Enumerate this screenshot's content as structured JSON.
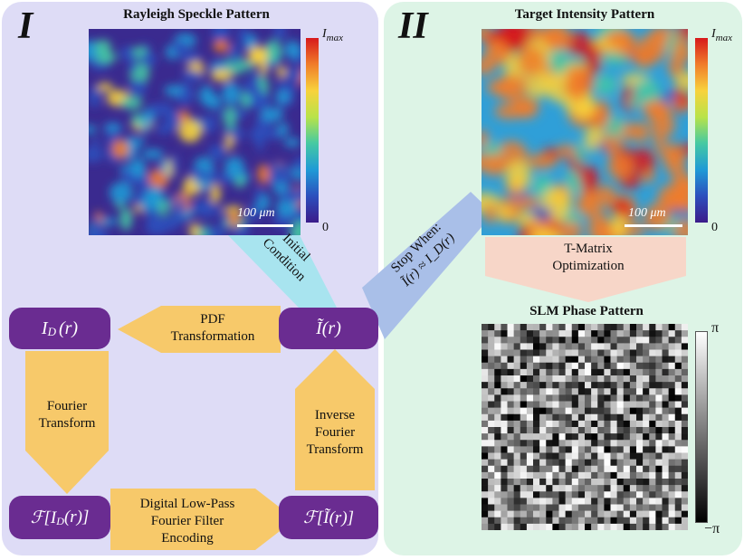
{
  "panels": {
    "left": {
      "numeral": "I",
      "title": "Rayleigh Speckle Pattern",
      "scale_label": "100 μm",
      "cbar_max": "I",
      "cbar_max_sub": "max",
      "cbar_min": "0"
    },
    "right": {
      "numeral": "II",
      "title": "Target Intensity Pattern",
      "scale_label": "100 μm",
      "cbar_max": "I",
      "cbar_max_sub": "max",
      "cbar_min": "0"
    },
    "slm": {
      "title": "SLM Phase Pattern",
      "cbar_max": "π",
      "cbar_min": "−π"
    }
  },
  "nodes": {
    "id": {
      "main": "I",
      "sub": "D",
      "tail": "(r)"
    },
    "itilde": {
      "main": "Ĩ(r)"
    },
    "fid": {
      "main": "ℱ[I",
      "sub": "D",
      "tail": "(r)]"
    },
    "fitilde": {
      "main": "ℱ[Ĩ(r)]"
    }
  },
  "labels": {
    "initial_1": "Initial",
    "initial_2": "Condition",
    "pdf_1": "PDF",
    "pdf_2": "Transformation",
    "fourier_1": "Fourier",
    "fourier_2": "Transform",
    "inverse_1": "Inverse",
    "inverse_2": "Fourier",
    "inverse_3": "Transform",
    "lowpass_1": "Digital Low-Pass",
    "lowpass_2": "Fourier Filter",
    "lowpass_3": "Encoding",
    "stop_1": "Stop When:",
    "stop_2": "Ĩ(r) ≈ I_D(r)",
    "tmatrix_1": "T-Matrix",
    "tmatrix_2": "Optimization"
  },
  "colors": {
    "node": "#6a2c91",
    "arrow_yellow": "#f7c96a",
    "arrow_cyan": "#a8e4ef",
    "arrow_blue": "#a9bfe8",
    "arrow_peach": "#f7d6c8"
  }
}
